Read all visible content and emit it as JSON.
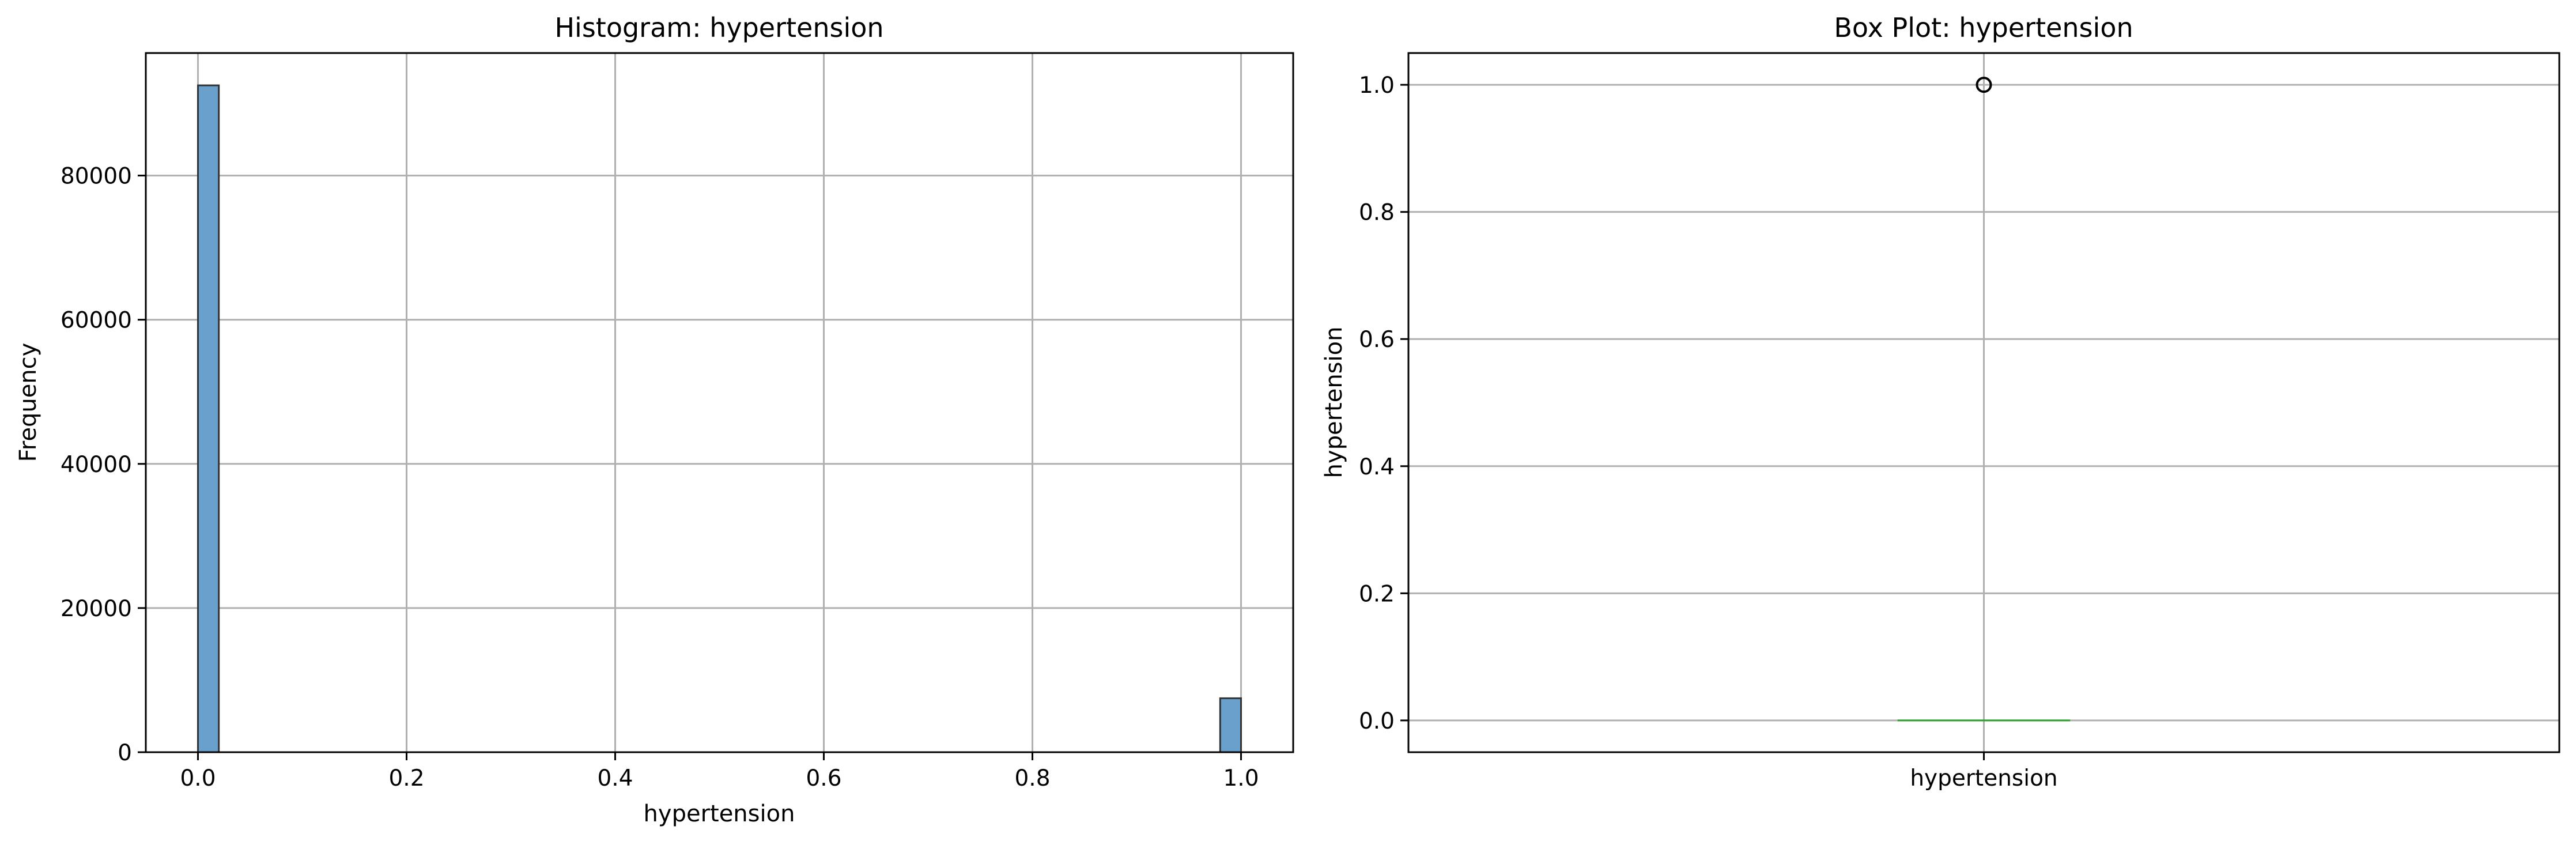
{
  "chart_data": [
    {
      "type": "bar",
      "title": "Histogram: hypertension",
      "xlabel": "hypertension",
      "ylabel": "Frequency",
      "xlim": [
        -0.05,
        1.05
      ],
      "ylim": [
        0,
        97000
      ],
      "xticks": [
        0.0,
        0.2,
        0.4,
        0.6,
        0.8,
        1.0
      ],
      "xtick_labels": [
        "0.0",
        "0.2",
        "0.4",
        "0.6",
        "0.8",
        "1.0"
      ],
      "yticks": [
        0,
        20000,
        40000,
        60000,
        80000
      ],
      "ytick_labels": [
        "0",
        "20000",
        "40000",
        "60000",
        "80000"
      ],
      "grid": true,
      "bar_color": "#6aa1cc",
      "edge_color": "#333333",
      "bins": [
        {
          "x0": 0.0,
          "x1": 0.02,
          "count": 92515
        },
        {
          "x0": 0.98,
          "x1": 1.0,
          "count": 7485
        }
      ]
    },
    {
      "type": "box",
      "title": "Box Plot: hypertension",
      "xlabel": "",
      "ylabel": "hypertension",
      "category": "hypertension",
      "ylim": [
        -0.05,
        1.05
      ],
      "yticks": [
        0.0,
        0.2,
        0.4,
        0.6,
        0.8,
        1.0
      ],
      "ytick_labels": [
        "0.0",
        "0.2",
        "0.4",
        "0.6",
        "0.8",
        "1.0"
      ],
      "grid": true,
      "median": 0.0,
      "q1": 0.0,
      "q3": 0.0,
      "whisker_low": 0.0,
      "whisker_high": 0.0,
      "outliers": [
        1.0
      ],
      "median_color": "#2ca02c"
    }
  ]
}
